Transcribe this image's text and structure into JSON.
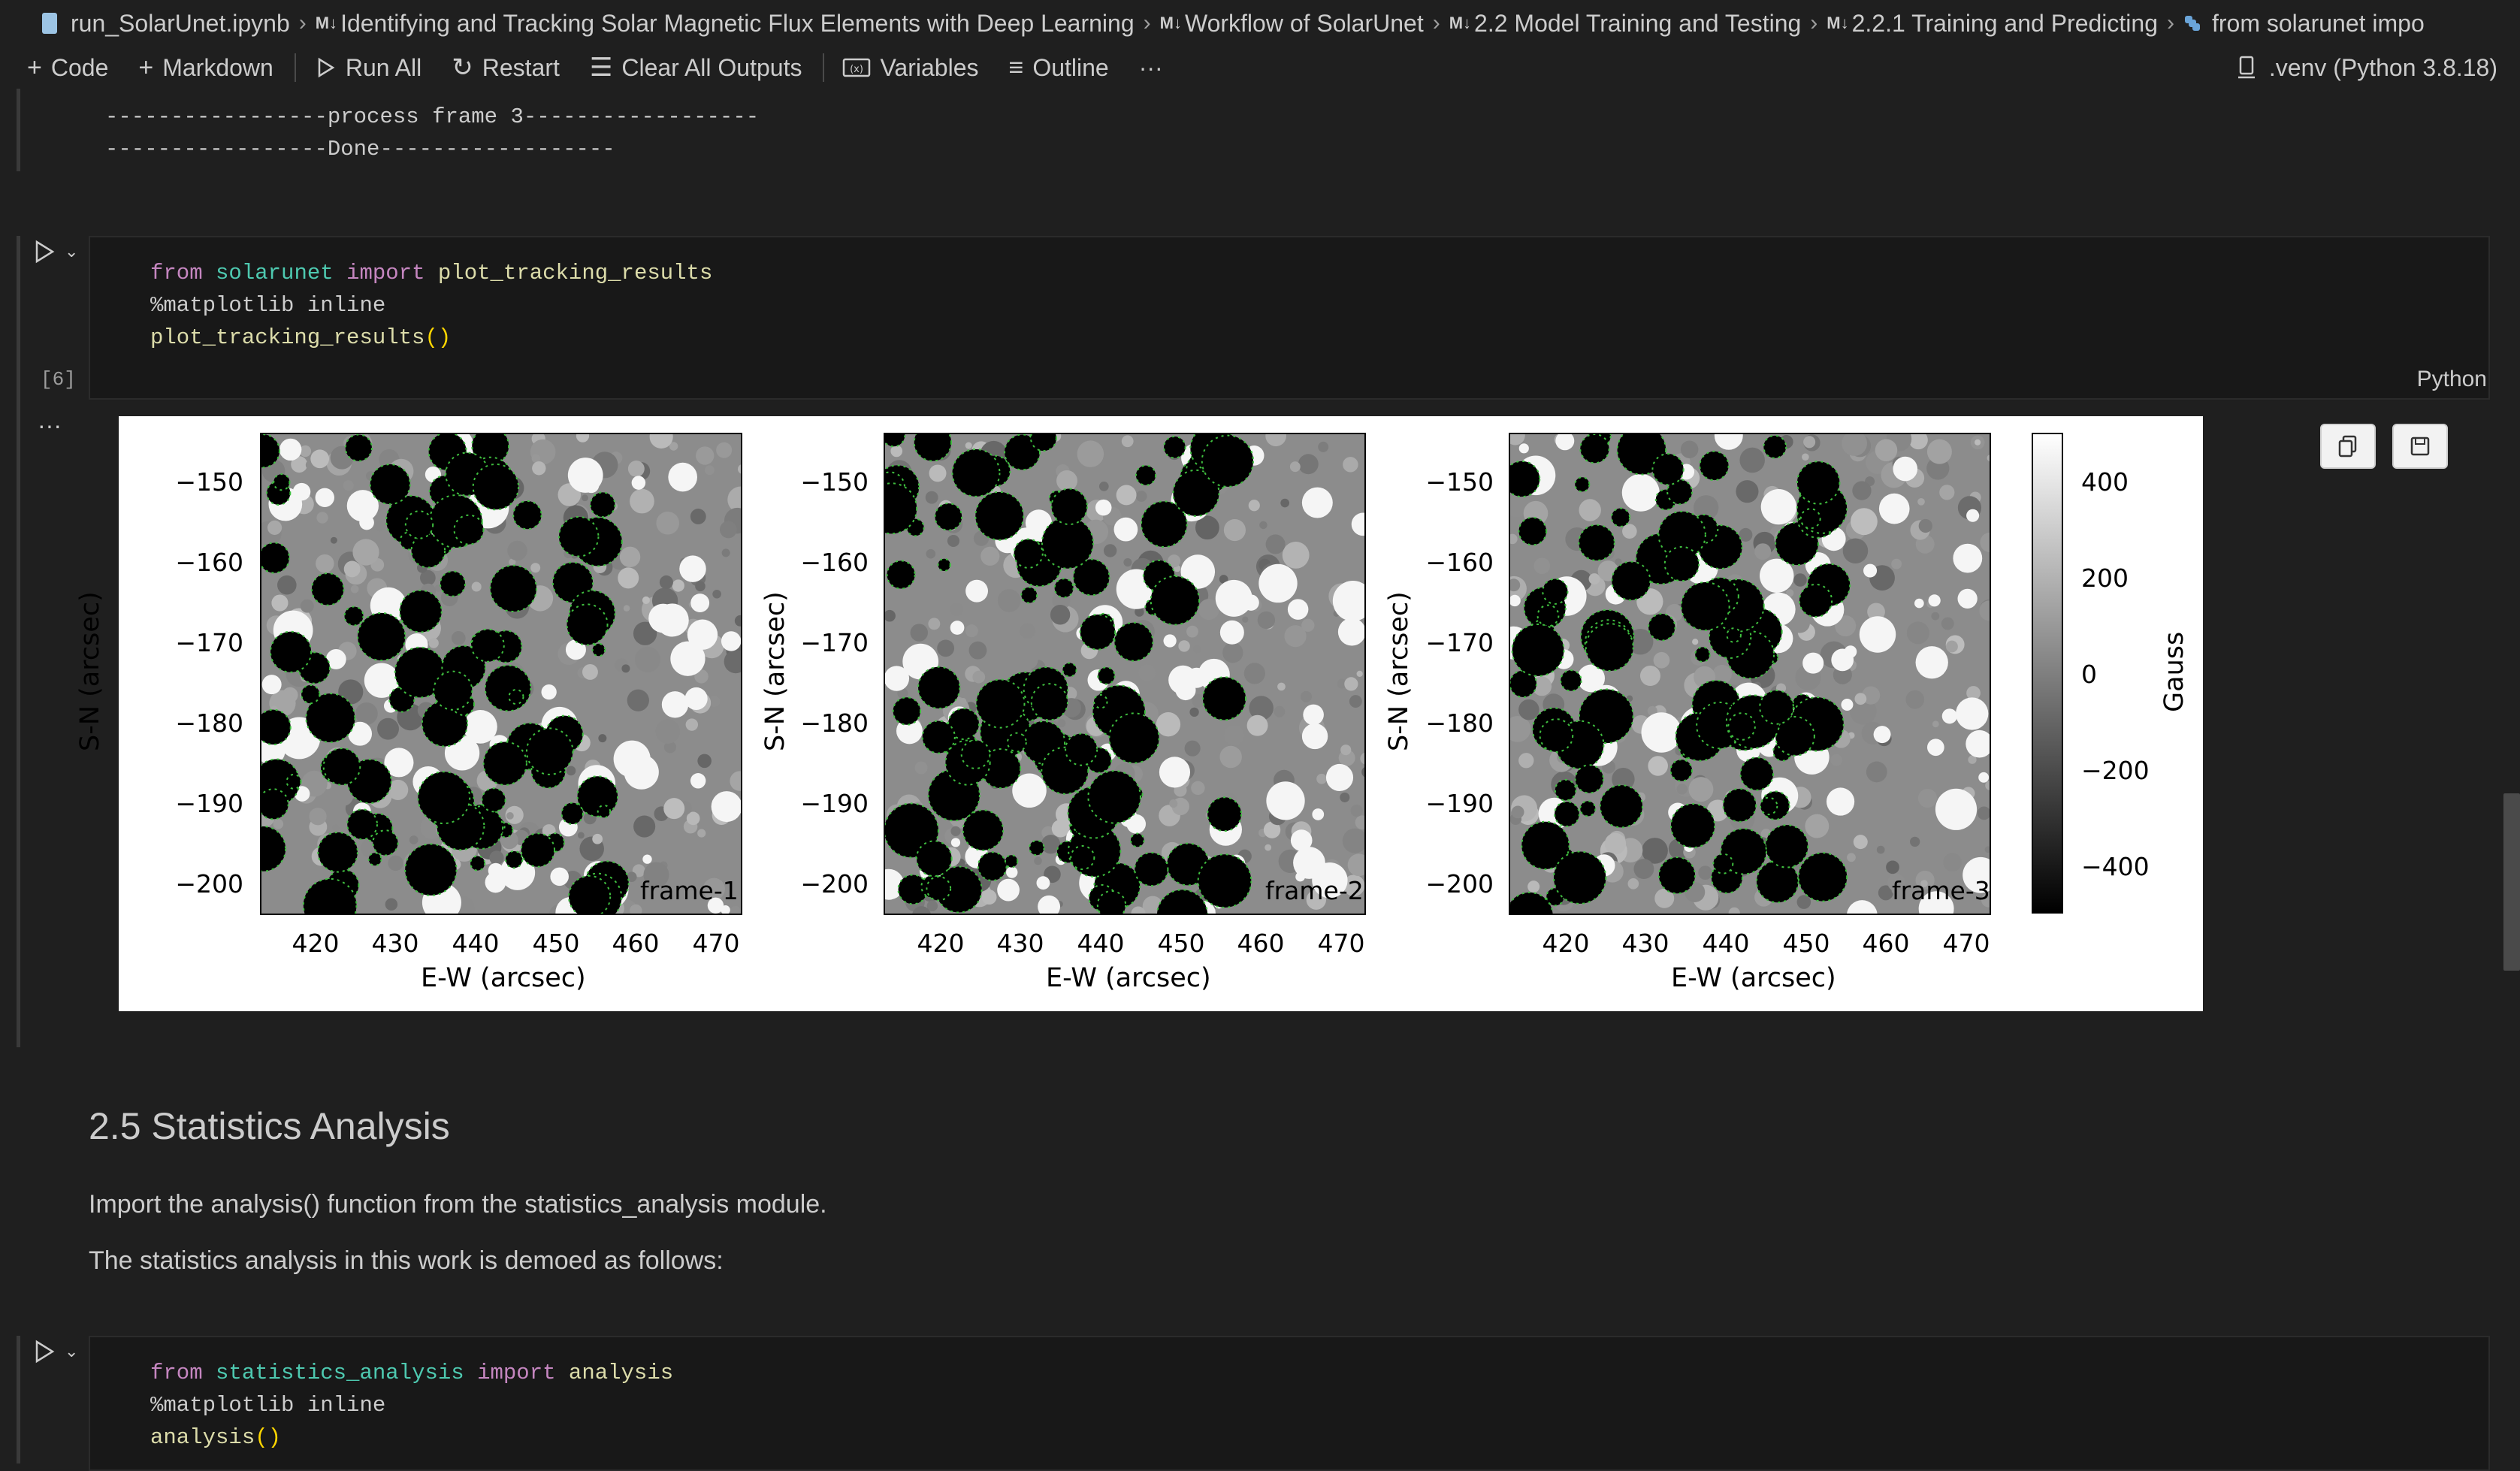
{
  "breadcrumb": {
    "file": "run_SolarUnet.ipynb",
    "items": [
      "Identifying and Tracking Solar Magnetic Flux Elements with Deep Learning",
      "Workflow of SolarUnet",
      "2.2 Model Training and Testing",
      "2.2.1 Training and Predicting"
    ],
    "md_tag": "M↓",
    "last": "from solarunet impo"
  },
  "toolbar": {
    "code": "Code",
    "markdown": "Markdown",
    "run_all": "Run All",
    "restart": "Restart",
    "clear_outputs": "Clear All Outputs",
    "variables": "Variables",
    "outline": "Outline",
    "more": "···",
    "kernel": ".venv (Python 3.8.18)"
  },
  "prev_output": {
    "lines": [
      "-----------------process frame 3------------------",
      "-----------------Done------------------"
    ]
  },
  "cell1": {
    "exec_count": "[6]",
    "lang": "Python",
    "line1": {
      "kw_from": "from",
      "module": "solarunet",
      "kw_import": "import",
      "name": "plot_tracking_results"
    },
    "line2": "%matplotlib inline",
    "line3": {
      "fn": "plot_tracking_results",
      "paren": "()"
    }
  },
  "output_more": "···",
  "chart_data": {
    "type": "heatmap",
    "panels": [
      {
        "title": "frame-1",
        "xlabel": "E-W (arcsec)",
        "ylabel": "S-N (arcsec)",
        "xticks": [
          "420",
          "430",
          "440",
          "450",
          "460",
          "470"
        ],
        "yticks": [
          "−150",
          "−160",
          "−170",
          "−180",
          "−190",
          "−200"
        ],
        "xlim": [
          413,
          473
        ],
        "ylim": [
          -204,
          -144
        ]
      },
      {
        "title": "frame-2",
        "xlabel": "E-W (arcsec)",
        "ylabel": "S-N (arcsec)",
        "xticks": [
          "420",
          "430",
          "440",
          "450",
          "460",
          "470"
        ],
        "yticks": [
          "−150",
          "−160",
          "−170",
          "−180",
          "−190",
          "−200"
        ],
        "xlim": [
          413,
          473
        ],
        "ylim": [
          -204,
          -144
        ]
      },
      {
        "title": "frame-3",
        "xlabel": "E-W (arcsec)",
        "ylabel": "S-N (arcsec)",
        "xticks": [
          "420",
          "430",
          "440",
          "450",
          "460",
          "470"
        ],
        "yticks": [
          "−150",
          "−160",
          "−170",
          "−180",
          "−190",
          "−200"
        ],
        "xlim": [
          413,
          473
        ],
        "ylim": [
          -204,
          -144
        ]
      }
    ],
    "colorbar": {
      "label": "Gauss",
      "ticks": [
        "400",
        "200",
        "0",
        "−200",
        "−400"
      ],
      "range": [
        -500,
        500
      ]
    }
  },
  "markdown": {
    "heading": "2.5 Statistics Analysis",
    "p1": "Import the analysis() function from the statistics_analysis module.",
    "p2": "The statistics analysis in this work is demoed as follows:"
  },
  "cell2": {
    "line1": {
      "kw_from": "from",
      "module": "statistics_analysis",
      "kw_import": "import",
      "name": "analysis"
    },
    "line2": "%matplotlib inline",
    "line3": {
      "fn": "analysis",
      "paren": "()"
    }
  },
  "colors": {
    "background": "#1f1f1f",
    "code_bg": "#181818",
    "keyword": "#c586c0",
    "module": "#4ec9b0",
    "function": "#dcdcaa"
  }
}
